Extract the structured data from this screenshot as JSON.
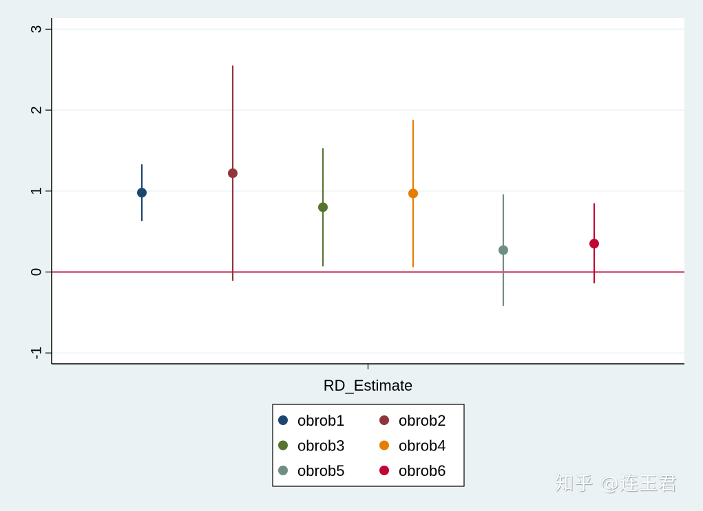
{
  "chart_data": {
    "type": "scatter",
    "subtype": "coefficient-plot-with-confidence-intervals",
    "title": "",
    "xlabel": "RD_Estimate",
    "ylabel": "",
    "ylim": [
      -1,
      3
    ],
    "yticks": [
      -1,
      0,
      1,
      2,
      3
    ],
    "ytick_labels": [
      "-1",
      "0",
      "1",
      "2",
      "3"
    ],
    "grid": true,
    "reference_line": {
      "y": 0,
      "color": "#c41e4e"
    },
    "categories": [
      "RD_Estimate"
    ],
    "legend_position": "bottom",
    "legend_columns": 2,
    "series": [
      {
        "name": "obrob1",
        "color": "#1a476f",
        "value": 0.98,
        "ci_lower": 0.63,
        "ci_upper": 1.33
      },
      {
        "name": "obrob2",
        "color": "#90353b",
        "value": 1.22,
        "ci_lower": -0.11,
        "ci_upper": 2.55
      },
      {
        "name": "obrob3",
        "color": "#55752f",
        "value": 0.8,
        "ci_lower": 0.07,
        "ci_upper": 1.53
      },
      {
        "name": "obrob4",
        "color": "#e37e00",
        "value": 0.97,
        "ci_lower": 0.06,
        "ci_upper": 1.88
      },
      {
        "name": "obrob5",
        "color": "#6e8e84",
        "value": 0.27,
        "ci_lower": -0.42,
        "ci_upper": 0.96
      },
      {
        "name": "obrob6",
        "color": "#c10534",
        "value": 0.35,
        "ci_lower": -0.14,
        "ci_upper": 0.85
      }
    ]
  },
  "watermark": "知乎 @连玉君"
}
